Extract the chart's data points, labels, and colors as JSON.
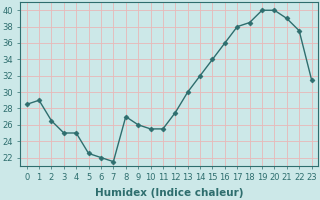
{
  "x": [
    0,
    1,
    2,
    3,
    4,
    5,
    6,
    7,
    8,
    9,
    10,
    11,
    12,
    13,
    14,
    15,
    16,
    17,
    18,
    19,
    20,
    21,
    22,
    23
  ],
  "y": [
    28.5,
    29,
    26.5,
    25,
    25,
    22.5,
    22,
    21.5,
    27,
    26,
    25.5,
    25.5,
    27.5,
    30,
    32,
    34,
    36,
    38,
    38.5,
    40,
    40,
    39,
    37.5,
    31.5
  ],
  "line_color": "#2e6e6e",
  "marker": "D",
  "marker_size": 2.5,
  "linewidth": 1.0,
  "background_color": "#cce8e8",
  "grid_color": "#e8b8b8",
  "xlabel": "Humidex (Indice chaleur)",
  "xlabel_fontsize": 7.5,
  "xlabel_bold": true,
  "ylabel_ticks": [
    22,
    24,
    26,
    28,
    30,
    32,
    34,
    36,
    38,
    40
  ],
  "xlim": [
    -0.5,
    23.5
  ],
  "ylim": [
    21,
    41
  ],
  "tick_fontsize": 6,
  "xtick_labels": [
    "0",
    "1",
    "2",
    "3",
    "4",
    "5",
    "6",
    "7",
    "8",
    "9",
    "10",
    "11",
    "12",
    "13",
    "14",
    "15",
    "16",
    "17",
    "18",
    "19",
    "20",
    "21",
    "22",
    "23"
  ]
}
